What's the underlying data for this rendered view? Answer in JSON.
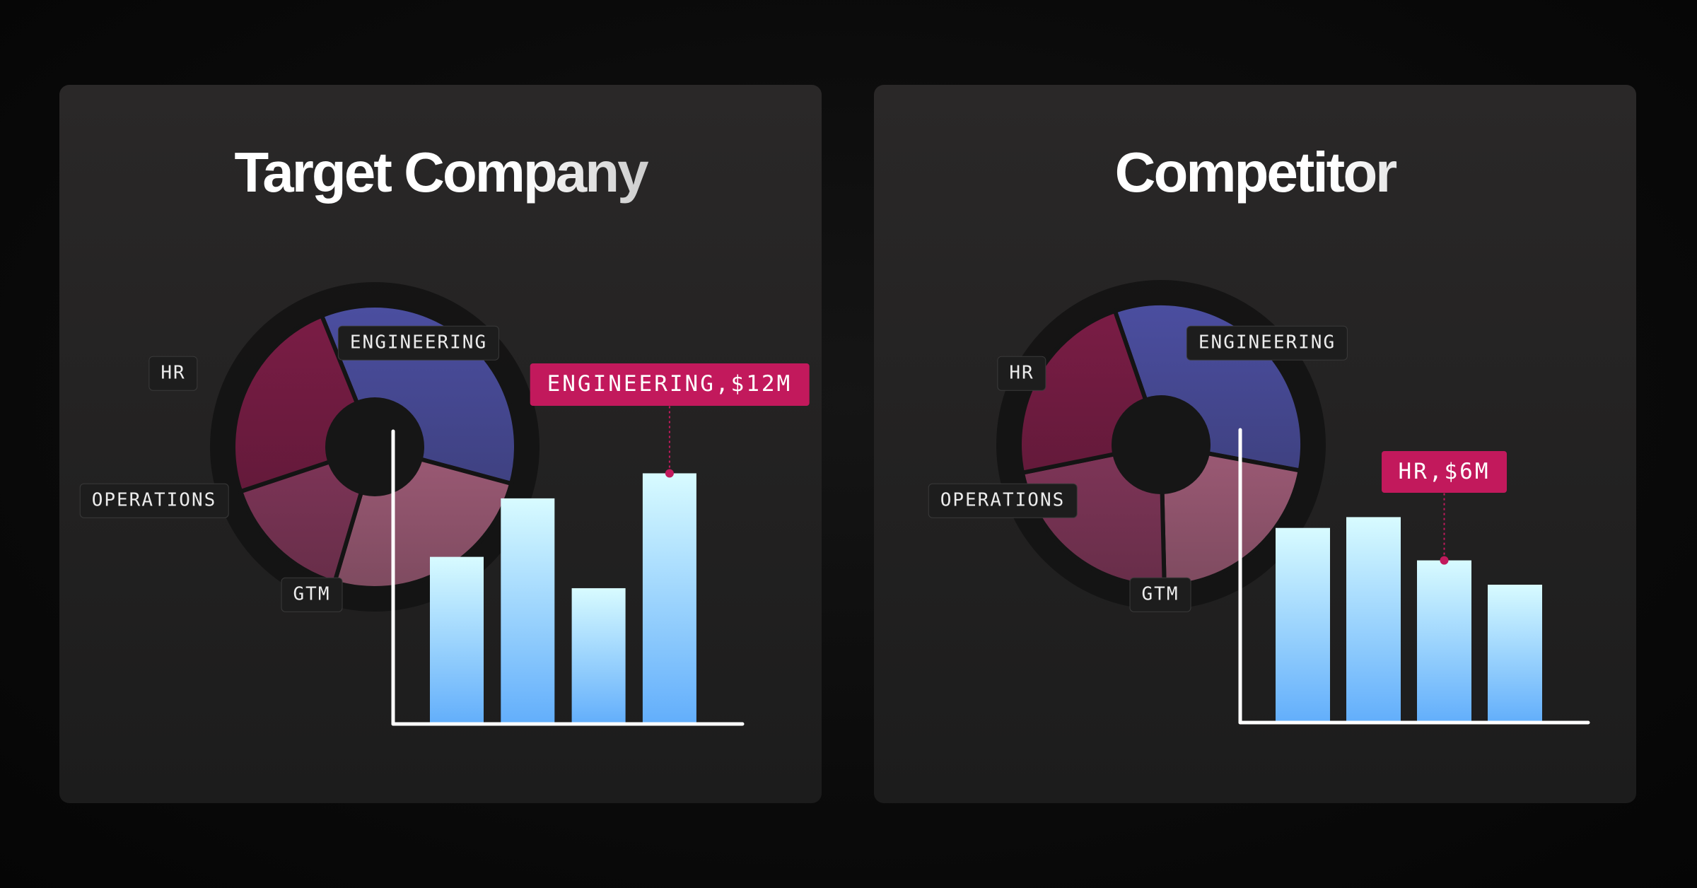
{
  "colors": {
    "engineering": "#4b4ea0",
    "hr": "#7a1c45",
    "operations": "#7f3558",
    "gtm": "#9c5a75",
    "bar_top": "#d8fbff",
    "bar_bottom": "#62aefb",
    "callout": "#c2195c"
  },
  "chart_data": [
    {
      "type": "bar",
      "title": "Target Company",
      "categories": [
        "",
        "",
        "",
        ""
      ],
      "values": [
        8,
        10.8,
        6.5,
        12
      ],
      "ylim": [
        0,
        13.2
      ],
      "highlight": {
        "index": 3,
        "label": "ENGINEERING,$12M"
      },
      "pie": {
        "type": "pie",
        "segments": [
          {
            "label": "ENGINEERING",
            "share": 0.353
          },
          {
            "label": "GTM",
            "share": 0.254
          },
          {
            "label": "OPERATIONS",
            "share": 0.153
          },
          {
            "label": "HR",
            "share": 0.24
          }
        ]
      }
    },
    {
      "type": "bar",
      "title": "Competitor",
      "categories": [
        "",
        "",
        "",
        ""
      ],
      "values": [
        7.2,
        7.6,
        6,
        5.1
      ],
      "ylim": [
        0,
        10.2
      ],
      "highlight": {
        "index": 2,
        "label": "HR,$6M"
      },
      "pie": {
        "type": "pie",
        "segments": [
          {
            "label": "ENGINEERING",
            "share": 0.332
          },
          {
            "label": "GTM",
            "share": 0.217
          },
          {
            "label": "OPERATIONS",
            "share": 0.222
          },
          {
            "label": "HR",
            "share": 0.229
          }
        ]
      }
    }
  ]
}
